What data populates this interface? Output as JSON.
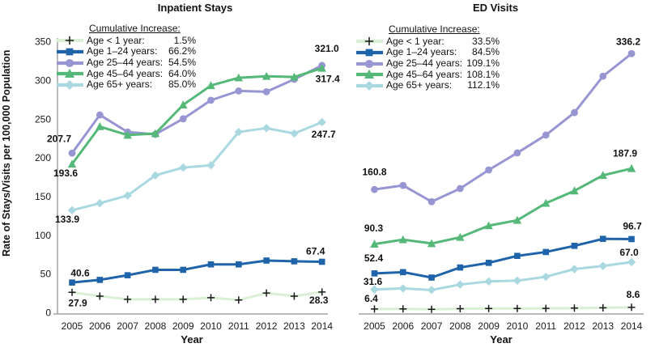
{
  "figure": {
    "y_axis_title": "Rate of Stays/Visits per 100,000 Population",
    "x_axis_title": "Year"
  },
  "chart_data": [
    {
      "type": "line",
      "title": "Inpatient Stays",
      "legend_title": "Cumulative Increase:",
      "x": [
        "2005",
        "2006",
        "2007",
        "2008",
        "2009",
        "2010",
        "2011",
        "2012",
        "2013",
        "2014"
      ],
      "xlabel": "Year",
      "ylabel": "Rate of Stays/Visits per 100,000 Population",
      "ylim": [
        0,
        350
      ],
      "y_ticks": [
        0,
        50,
        100,
        150,
        200,
        250,
        300,
        350
      ],
      "series": [
        {
          "name": "Age < 1 year:",
          "pct": "1.5%",
          "color": "#D9F0D5",
          "marker": "plus",
          "marker_color": "#1a1a1a",
          "values": [
            27.9,
            23,
            19,
            19,
            19,
            21,
            18,
            27,
            23,
            28.3
          ],
          "start_label": "27.9",
          "end_label": "28.3"
        },
        {
          "name": "Age 1–24 years:",
          "pct": "66.2%",
          "color": "#1F64AA",
          "marker": "square",
          "marker_color": "#1F64AA",
          "values": [
            40.6,
            44,
            50,
            57,
            57,
            64,
            64,
            69,
            68,
            67.4
          ],
          "start_label": "40.6",
          "end_label": "67.4"
        },
        {
          "name": "Age 25–44 years:",
          "pct": "54.5%",
          "color": "#9795D2",
          "marker": "circle",
          "marker_color": "#9795D2",
          "values": [
            207.7,
            257,
            235,
            232,
            252,
            276,
            288,
            287,
            303,
            321.0
          ],
          "start_label": "207.7",
          "end_label": "321.0"
        },
        {
          "name": "Age 45–64 years:",
          "pct": "64.0%",
          "color": "#54B878",
          "marker": "triangle",
          "marker_color": "#54B878",
          "values": [
            193.6,
            242,
            231,
            233,
            270,
            295,
            305,
            307,
            306,
            317.4
          ],
          "start_label": "193.6",
          "end_label": "317.4"
        },
        {
          "name": "Age 65+ years:",
          "pct": "85.0%",
          "color": "#A9D8E1",
          "marker": "diamond",
          "marker_color": "#A9D8E1",
          "values": [
            133.9,
            143,
            153,
            179,
            189,
            192,
            235,
            240,
            233,
            247.7
          ],
          "start_label": "133.9",
          "end_label": "247.7"
        }
      ]
    },
    {
      "type": "line",
      "title": "ED Visits",
      "legend_title": "Cumulative Increase:",
      "x": [
        "2005",
        "2006",
        "2007",
        "2008",
        "2009",
        "2010",
        "2011",
        "2012",
        "2013",
        "2014"
      ],
      "xlabel": "Year",
      "ylim": [
        0,
        350
      ],
      "series": [
        {
          "name": "Age < 1 year:",
          "pct": "33.5%",
          "color": "#D9F0D5",
          "marker": "plus",
          "marker_color": "#1a1a1a",
          "values": [
            6.4,
            6.5,
            6.0,
            6.8,
            7.0,
            7.0,
            7.2,
            7.6,
            8.0,
            8.6
          ],
          "start_label": "6.4",
          "end_label": "8.6"
        },
        {
          "name": "Age 1–24 years:",
          "pct": "84.5%",
          "color": "#1F64AA",
          "marker": "square",
          "marker_color": "#1F64AA",
          "values": [
            52.4,
            54,
            47,
            60,
            66,
            75,
            80,
            88,
            97,
            96.7
          ],
          "start_label": "52.4",
          "end_label": "96.7"
        },
        {
          "name": "Age 25–44 years:",
          "pct": "109.1%",
          "color": "#9795D2",
          "marker": "circle",
          "marker_color": "#9795D2",
          "values": [
            160.8,
            166,
            145,
            162,
            186,
            208,
            231,
            260,
            307,
            336.2
          ],
          "start_label": "160.8",
          "end_label": "336.2"
        },
        {
          "name": "Age 45–64 years:",
          "pct": "108.1%",
          "color": "#54B878",
          "marker": "triangle",
          "marker_color": "#54B878",
          "values": [
            90.3,
            96,
            91,
            99,
            114,
            121,
            143,
            159,
            179,
            187.9
          ],
          "start_label": "90.3",
          "end_label": "187.9"
        },
        {
          "name": "Age 65+ years:",
          "pct": "112.1%",
          "color": "#A9D8E1",
          "marker": "diamond",
          "marker_color": "#A9D8E1",
          "values": [
            31.6,
            33,
            31,
            38,
            42,
            43,
            48,
            58,
            62,
            67.0
          ],
          "start_label": "31.6",
          "end_label": "67.0"
        }
      ]
    }
  ]
}
